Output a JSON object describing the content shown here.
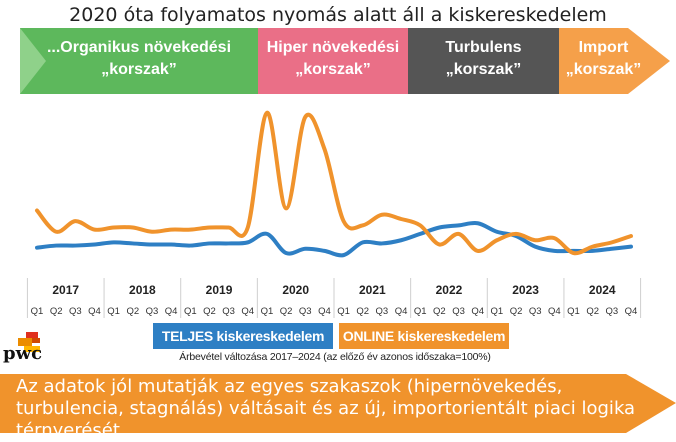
{
  "title": "2020 óta folyamatos nyomás alatt áll a kiskereskedelem",
  "colors": {
    "total": "#2e7fc4",
    "online": "#f0932c",
    "phase_green": "#5db85c",
    "phase_pink": "#ea6f87",
    "phase_gray": "#555555",
    "phase_orange": "#f5a04a",
    "banner": "#f0932c"
  },
  "phases": [
    {
      "line1": "...Organikus növekedési",
      "line2": "„korszak”",
      "start_index": 0,
      "end_index": 11
    },
    {
      "line1": "Hiper növekedési",
      "line2": "„korszak”",
      "start_index": 12,
      "end_index": 19
    },
    {
      "line1": "Turbulens",
      "line2": "„korszak”",
      "start_index": 20,
      "end_index": 27
    },
    {
      "line1": "Import",
      "line2": "„korszak”",
      "start_index": 28,
      "end_index": 31
    }
  ],
  "chart_data": {
    "type": "line",
    "years": [
      "2017",
      "2018",
      "2019",
      "2020",
      "2021",
      "2022",
      "2023",
      "2024"
    ],
    "quarter_labels": [
      "Q1",
      "Q2",
      "Q3",
      "Q4"
    ],
    "series": [
      {
        "name": "TELJES kiskereskedelem",
        "color_key": "total",
        "values": [
          106.5,
          107.5,
          107.5,
          108,
          109,
          108.5,
          108,
          108,
          107.5,
          108.5,
          108.5,
          109,
          113,
          104,
          106,
          105,
          103,
          109,
          108.5,
          110,
          113,
          116,
          117,
          118,
          114,
          112,
          107,
          105,
          105,
          105,
          106,
          107
        ]
      },
      {
        "name": "ONLINE kiskereskedelem",
        "color_key": "online",
        "values": [
          124,
          114,
          119,
          115,
          116,
          116,
          114,
          115,
          115,
          116,
          116,
          116,
          170,
          125,
          168,
          153,
          119,
          117,
          122,
          120,
          117,
          108,
          113,
          105,
          110,
          113,
          110,
          111,
          104,
          107,
          109,
          112
        ]
      }
    ],
    "ylim": [
      96,
      176
    ],
    "xlabel": "Árbevétel változása 2017–2024 (az előző év azonos időszaka=100%)"
  },
  "legend": {
    "total": "TELJES kiskereskedelem",
    "online": "ONLINE kiskereskedelem"
  },
  "note": "Árbevétel változása 2017–2024 (az előző év azonos időszaka=100%)",
  "logo_text": "pwc",
  "banner_text": "Az adatok jól mutatják az egyes szakaszok (hipernövekedés, turbulencia, stagnálás) váltásait és az új, importorientált piaci logika térnyerését"
}
